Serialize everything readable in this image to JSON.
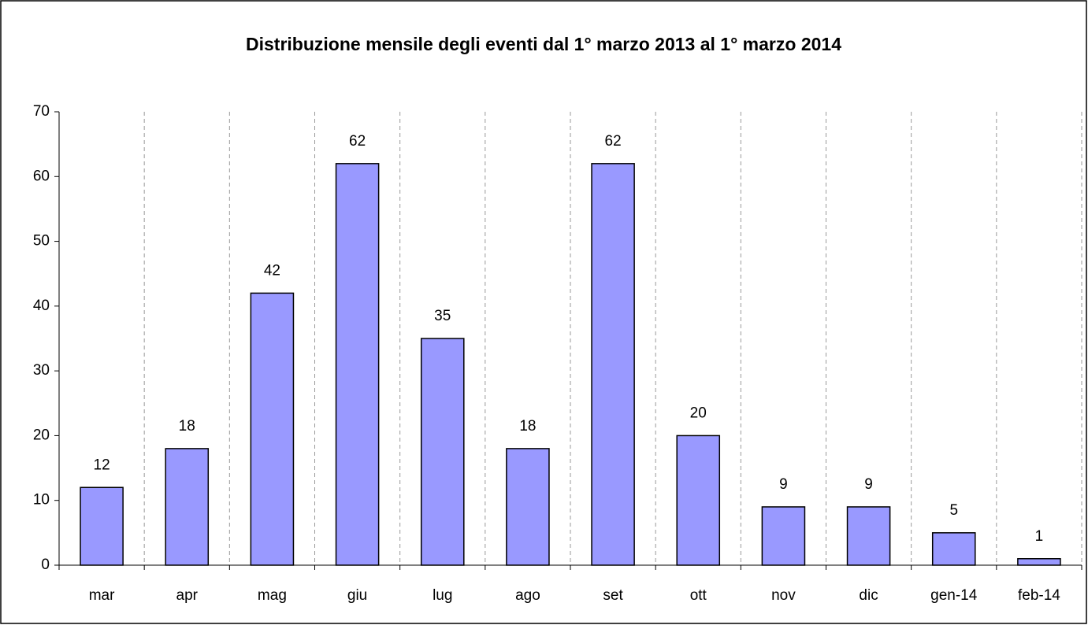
{
  "chart_data": {
    "type": "bar",
    "title": "Distribuzione mensile degli eventi dal 1° marzo 2013 al 1° marzo 2014",
    "categories": [
      "mar",
      "apr",
      "mag",
      "giu",
      "lug",
      "ago",
      "set",
      "ott",
      "nov",
      "dic",
      "gen-14",
      "feb-14"
    ],
    "values": [
      12,
      18,
      42,
      62,
      35,
      18,
      62,
      20,
      9,
      9,
      5,
      1
    ],
    "color": "#9999ff",
    "ylim": [
      0,
      70
    ],
    "yticks": [
      0,
      10,
      20,
      30,
      40,
      50,
      60,
      70
    ],
    "grid": true
  }
}
